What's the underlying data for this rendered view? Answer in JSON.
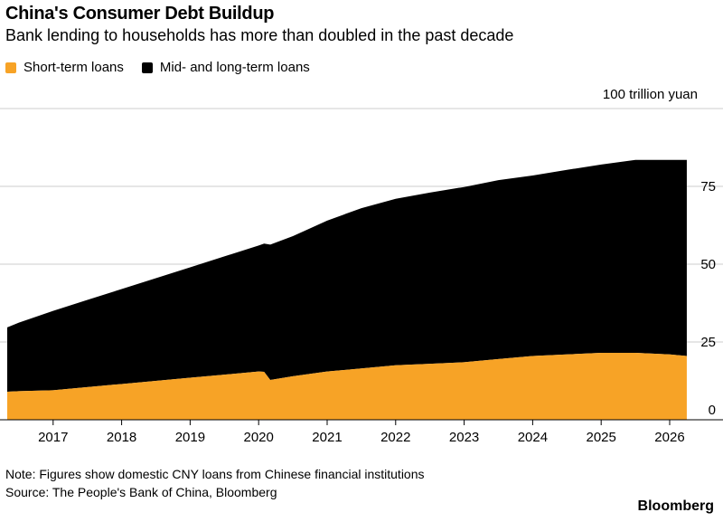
{
  "title": "China's Consumer Debt Buildup",
  "subtitle": "Bank lending to households has more than doubled in the past decade",
  "note": "Note: Figures show domestic CNY loans from Chinese financial institutions",
  "source": "Source: The People's Bank of China, Bloomberg",
  "brand": "Bloomberg",
  "colors": {
    "short": "#F7A326",
    "mid": "#000000",
    "grid": "#cccccc",
    "axis": "#000000"
  },
  "chart_data": {
    "type": "area",
    "stacked": true,
    "unit_label": "100 trillion yuan",
    "x": [
      2016.33,
      2016.5,
      2017.0,
      2017.5,
      2018.0,
      2018.5,
      2019.0,
      2019.5,
      2020.0,
      2020.08,
      2020.17,
      2020.5,
      2021.0,
      2021.5,
      2022.0,
      2022.5,
      2023.0,
      2023.5,
      2024.0,
      2024.5,
      2025.0,
      2025.5,
      2026.0,
      2026.25
    ],
    "series": [
      {
        "name": "Short-term loans",
        "values": [
          9,
          9.2,
          9.5,
          10.5,
          11.5,
          12.5,
          13.5,
          14.5,
          15.5,
          15.4,
          12.8,
          14,
          15.5,
          16.5,
          17.5,
          18,
          18.5,
          19.5,
          20.5,
          21,
          21.5,
          21.5,
          21,
          20.5
        ]
      },
      {
        "name": "Mid- and long-term loans",
        "values": [
          20.7,
          22,
          25.5,
          28,
          30.5,
          33,
          35.5,
          38,
          40.5,
          41.2,
          43.5,
          45,
          48.5,
          51.5,
          53.5,
          55,
          56.3,
          57.5,
          58,
          59.3,
          60.5,
          62,
          62.5,
          63
        ]
      }
    ],
    "xlim": [
      2016.33,
      2026.33
    ],
    "ylim": [
      0,
      100
    ],
    "yticks": [
      0,
      25,
      50,
      75
    ],
    "xticks": [
      2017,
      2018,
      2019,
      2020,
      2021,
      2022,
      2023,
      2024,
      2025,
      2026
    ],
    "grid": true,
    "legend": "top-left"
  }
}
